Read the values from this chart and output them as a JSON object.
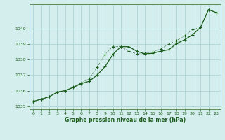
{
  "xlabel": "Graphe pression niveau de la mer (hPa)",
  "background_color": "#d4eeed",
  "plot_bg_color": "#d4eeed",
  "line_color": "#1a5c1a",
  "grid_color": "#aacece",
  "spine_color": "#5a8a5a",
  "ylim": [
    1034.8,
    1041.6
  ],
  "xlim": [
    -0.5,
    23.5
  ],
  "yticks": [
    1035,
    1036,
    1037,
    1038,
    1039,
    1040
  ],
  "xticks": [
    0,
    1,
    2,
    3,
    4,
    5,
    6,
    7,
    8,
    9,
    10,
    11,
    12,
    13,
    14,
    15,
    16,
    17,
    18,
    19,
    20,
    21,
    22,
    23
  ],
  "series1_x": [
    0,
    1,
    2,
    3,
    4,
    5,
    6,
    7,
    8,
    9,
    10,
    11,
    12,
    13,
    14,
    15,
    16,
    17,
    18,
    19,
    20,
    21,
    22,
    23
  ],
  "series1_y": [
    1035.3,
    1035.45,
    1035.6,
    1035.9,
    1036.0,
    1036.2,
    1036.45,
    1036.6,
    1037.0,
    1037.55,
    1038.35,
    1038.85,
    1038.85,
    1038.55,
    1038.38,
    1038.42,
    1038.55,
    1038.65,
    1039.05,
    1039.3,
    1039.62,
    1040.1,
    1041.25,
    1041.05
  ],
  "series2_x": [
    0,
    1,
    2,
    3,
    4,
    5,
    6,
    7,
    8,
    9,
    10,
    11,
    12,
    13,
    14,
    15,
    16,
    17,
    18,
    19,
    20,
    21,
    22,
    23
  ],
  "series2_y": [
    1035.3,
    1035.45,
    1035.6,
    1035.9,
    1036.0,
    1036.25,
    1036.5,
    1036.75,
    1037.5,
    1038.35,
    1038.85,
    1038.85,
    1038.55,
    1038.38,
    1038.42,
    1038.5,
    1038.7,
    1039.0,
    1039.25,
    1039.55,
    1039.95,
    1040.1,
    1041.25,
    1041.05
  ]
}
